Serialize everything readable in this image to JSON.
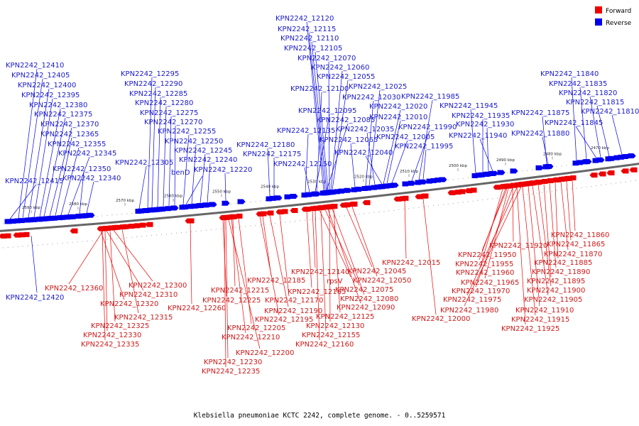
{
  "legend": {
    "forward": {
      "label": "Forward",
      "color": "#ee0000"
    },
    "reverse": {
      "label": "Reverse",
      "color": "#0000ee"
    }
  },
  "caption": "Klebsiella pneumoniae KCTC 2242, complete genome. - 0..5259571",
  "ticks": [
    "2590 kbp",
    "2580 kbp",
    "2570 kbp",
    "2560 kbp",
    "2550 kbp",
    "2540 kbp",
    "2530 kbp",
    "2520 kbp",
    "2510 kbp",
    "2500 kbp",
    "2490 kbp",
    "2480 kbp",
    "2470 kbp"
  ],
  "reverse_labels": [
    "KPN2242_12120",
    "KPN2242_12115",
    "KPN2242_12110",
    "KPN2242_12105",
    "KPN2242_12070",
    "KPN2242_12060",
    "KPN2242_12055",
    "KPN2242_12100",
    "KPN2242_12025",
    "KPN2242_12030",
    "KPN2242_11985",
    "KPN2242_12020",
    "KPN2242_12095",
    "KPN2242_12085",
    "KPN2242_12010",
    "KPN2242_12035",
    "KPN2242_11990",
    "KPN2242_12135",
    "KPN2242_12065",
    "KPN2242_12005",
    "KPN2242_11995",
    "KPN2242_12040",
    "KPN2242_12150",
    "KPN2242_12410",
    "KPN2242_12405",
    "KPN2242_12400",
    "KPN2242_12395",
    "KPN2242_12380",
    "KPN2242_12375",
    "KPN2242_12370",
    "KPN2242_12365",
    "KPN2242_12355",
    "KPN2242_12345",
    "KPN2242_12350",
    "KPN2242_12340",
    "KPN2242_12415",
    "KPN2242_12295",
    "KPN2242_12290",
    "KPN2242_12285",
    "KPN2242_12280",
    "KPN2242_12275",
    "KPN2242_12270",
    "KPN2242_12255",
    "KPN2242_12250",
    "KPN2242_12245",
    "KPN2242_12240",
    "KPN2242_12305",
    "KPN2242_12220",
    "benD",
    "KPN2242_12180",
    "KPN2242_12175",
    "KPN2242_11945",
    "KPN2242_11935",
    "KPN2242_11930",
    "KPN2242_11940",
    "KPN2242_11875",
    "KPN2242_11880",
    "KPN2242_11840",
    "KPN2242_11835",
    "KPN2242_11820",
    "KPN2242_11815",
    "KPN2242_11810",
    "KPN2242_11845",
    "KPN2242_12420"
  ],
  "forward_labels": [
    "KPN2242_12015",
    "KPN2242_12140",
    "KPN2242_12045",
    "KPN2242_12050",
    "KPN2242_12185",
    "rpsV",
    "KPN2242_12075",
    "KPN2242_12165",
    "KPN2242_12080",
    "KPN2242_12090",
    "KPN2242_12215",
    "KPN2242_12225",
    "KPN2242_12170",
    "KPN2242_12190",
    "KPN2242_12195",
    "KPN2242_12125",
    "KPN2242_12130",
    "KPN2242_12205",
    "KPN2242_12155",
    "KPN2242_12210",
    "KPN2242_12160",
    "KPN2242_12200",
    "KPN2242_12230",
    "KPN2242_12235",
    "KPN2242_12360",
    "KPN2242_12300",
    "KPN2242_12310",
    "KPN2242_12320",
    "KPN2242_12315",
    "KPN2242_12325",
    "KPN2242_12330",
    "KPN2242_12335",
    "KPN2242_12260",
    "KPN2242_11860",
    "KPN2242_11865",
    "KPN2242_11920",
    "KPN2242_11870",
    "KPN2242_11950",
    "KPN2242_11885",
    "KPN2242_11955",
    "KPN2242_11890",
    "KPN2242_11960",
    "KPN2242_11895",
    "KPN2242_11965",
    "KPN2242_11900",
    "KPN2242_11970",
    "KPN2242_11905",
    "KPN2242_11975",
    "KPN2242_11910",
    "KPN2242_11980",
    "KPN2242_11915",
    "KPN2242_12000",
    "KPN2242_11925"
  ]
}
